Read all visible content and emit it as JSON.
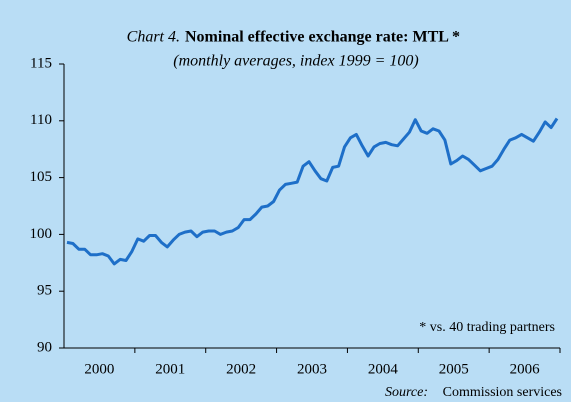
{
  "chart_data": {
    "type": "line",
    "chart_label": "Chart 4.",
    "title": "Nominal effective exchange rate: MTL *",
    "subtitle": "(monthly averages, index 1999 = 100)",
    "annotation": "* vs. 40 trading partners",
    "source_label": "Source:",
    "source": "Commission services",
    "categories": [
      "2000",
      "2001",
      "2002",
      "2003",
      "2004",
      "2005",
      "2006"
    ],
    "color": "#1e6fc8",
    "values": [
      [
        99.3,
        99.2,
        98.7,
        98.7,
        98.2,
        98.2,
        98.3,
        98.1,
        97.4,
        97.8,
        97.7,
        98.5
      ],
      [
        99.6,
        99.4,
        99.9,
        99.9,
        99.3,
        98.9,
        99.5,
        100.0,
        100.2,
        100.3,
        99.8,
        100.2
      ],
      [
        100.3,
        100.3,
        100.0,
        100.2,
        100.3,
        100.6,
        101.3,
        101.3,
        101.8,
        102.4,
        102.5,
        102.9
      ],
      [
        103.9,
        104.4,
        104.5,
        104.6,
        106.0,
        106.4,
        105.6,
        104.9,
        104.7,
        105.9,
        106.0,
        107.7
      ],
      [
        108.5,
        108.8,
        107.8,
        106.9,
        107.7,
        108.0,
        108.1,
        107.9,
        107.8,
        108.4,
        109.0,
        110.1
      ],
      [
        109.1,
        108.9,
        109.3,
        109.1,
        108.3,
        106.2,
        106.5,
        106.9,
        106.6,
        106.1,
        105.6,
        105.8
      ],
      [
        106.0,
        106.6,
        107.5,
        108.3,
        108.5,
        108.8,
        108.5,
        108.2,
        109.0,
        109.9,
        109.4,
        110.2
      ]
    ],
    "ylim": [
      90,
      115
    ],
    "yticks": [
      90,
      95,
      100,
      105,
      110,
      115
    ],
    "grid": false
  }
}
